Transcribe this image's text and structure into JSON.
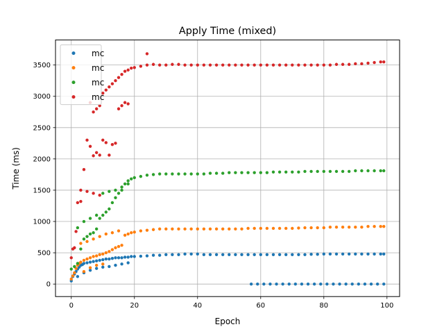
{
  "chart_data": {
    "type": "scatter",
    "title": "Apply Time (mixed)",
    "xlabel": "Epoch",
    "ylabel": "Time (ms)",
    "xlim": [
      -5,
      104
    ],
    "ylim": [
      -200,
      3900
    ],
    "xticks": [
      0,
      20,
      40,
      60,
      80,
      100
    ],
    "yticks": [
      0,
      500,
      1000,
      1500,
      2000,
      2500,
      3000,
      3500
    ],
    "grid": true,
    "legend": {
      "placement": "top-left"
    },
    "series": [
      {
        "name": "mc",
        "color": "#1f77b4",
        "points": [
          [
            0,
            50
          ],
          [
            0.5,
            120
          ],
          [
            1,
            160
          ],
          [
            1.5,
            200
          ],
          [
            2,
            240
          ],
          [
            2.5,
            270
          ],
          [
            3,
            300
          ],
          [
            3.5,
            310
          ],
          [
            4,
            330
          ],
          [
            5,
            340
          ],
          [
            6,
            350
          ],
          [
            7,
            360
          ],
          [
            8,
            370
          ],
          [
            9,
            380
          ],
          [
            10,
            390
          ],
          [
            11,
            400
          ],
          [
            12,
            400
          ],
          [
            13,
            410
          ],
          [
            14,
            420
          ],
          [
            15,
            420
          ],
          [
            16,
            420
          ],
          [
            17,
            430
          ],
          [
            18,
            430
          ],
          [
            19,
            440
          ],
          [
            20,
            440
          ],
          [
            22,
            445
          ],
          [
            24,
            450
          ],
          [
            26,
            460
          ],
          [
            28,
            460
          ],
          [
            30,
            470
          ],
          [
            32,
            470
          ],
          [
            34,
            470
          ],
          [
            36,
            480
          ],
          [
            38,
            480
          ],
          [
            40,
            480
          ],
          [
            42,
            470
          ],
          [
            44,
            470
          ],
          [
            46,
            470
          ],
          [
            48,
            470
          ],
          [
            50,
            470
          ],
          [
            52,
            470
          ],
          [
            54,
            470
          ],
          [
            56,
            470
          ],
          [
            58,
            470
          ],
          [
            60,
            470
          ],
          [
            62,
            470
          ],
          [
            64,
            470
          ],
          [
            66,
            470
          ],
          [
            68,
            470
          ],
          [
            70,
            470
          ],
          [
            72,
            470
          ],
          [
            74,
            470
          ],
          [
            76,
            475
          ],
          [
            78,
            475
          ],
          [
            80,
            480
          ],
          [
            82,
            480
          ],
          [
            84,
            480
          ],
          [
            86,
            480
          ],
          [
            88,
            480
          ],
          [
            90,
            480
          ],
          [
            92,
            480
          ],
          [
            94,
            480
          ],
          [
            96,
            480
          ],
          [
            98,
            480
          ],
          [
            99,
            480
          ],
          [
            2,
            120
          ],
          [
            4,
            180
          ],
          [
            6,
            220
          ],
          [
            8,
            250
          ],
          [
            10,
            270
          ],
          [
            12,
            280
          ],
          [
            14,
            300
          ],
          [
            16,
            320
          ],
          [
            18,
            340
          ],
          [
            57,
            0
          ],
          [
            59,
            0
          ],
          [
            61,
            0
          ],
          [
            63,
            0
          ],
          [
            65,
            0
          ],
          [
            67,
            0
          ],
          [
            69,
            0
          ],
          [
            71,
            0
          ],
          [
            73,
            0
          ],
          [
            75,
            0
          ],
          [
            77,
            0
          ],
          [
            79,
            0
          ],
          [
            81,
            0
          ],
          [
            83,
            0
          ],
          [
            85,
            0
          ],
          [
            87,
            0
          ],
          [
            89,
            0
          ],
          [
            91,
            0
          ],
          [
            93,
            0
          ],
          [
            95,
            0
          ],
          [
            97,
            0
          ],
          [
            99,
            0
          ]
        ]
      },
      {
        "name": "mc",
        "color": "#ff7f0e",
        "points": [
          [
            0,
            80
          ],
          [
            0.5,
            130
          ],
          [
            1,
            180
          ],
          [
            1.5,
            250
          ],
          [
            2,
            300
          ],
          [
            2.5,
            330
          ],
          [
            3,
            350
          ],
          [
            4,
            380
          ],
          [
            5,
            400
          ],
          [
            6,
            420
          ],
          [
            7,
            440
          ],
          [
            8,
            450
          ],
          [
            9,
            470
          ],
          [
            10,
            480
          ],
          [
            11,
            500
          ],
          [
            12,
            520
          ],
          [
            13,
            550
          ],
          [
            14,
            580
          ],
          [
            15,
            600
          ],
          [
            16,
            620
          ],
          [
            17,
            780
          ],
          [
            18,
            800
          ],
          [
            19,
            820
          ],
          [
            20,
            830
          ],
          [
            22,
            850
          ],
          [
            24,
            860
          ],
          [
            26,
            870
          ],
          [
            28,
            880
          ],
          [
            30,
            880
          ],
          [
            32,
            880
          ],
          [
            34,
            880
          ],
          [
            36,
            880
          ],
          [
            38,
            880
          ],
          [
            40,
            880
          ],
          [
            42,
            880
          ],
          [
            44,
            880
          ],
          [
            46,
            880
          ],
          [
            48,
            880
          ],
          [
            50,
            880
          ],
          [
            52,
            880
          ],
          [
            54,
            880
          ],
          [
            56,
            890
          ],
          [
            58,
            890
          ],
          [
            60,
            890
          ],
          [
            62,
            890
          ],
          [
            64,
            890
          ],
          [
            66,
            890
          ],
          [
            68,
            890
          ],
          [
            70,
            890
          ],
          [
            72,
            895
          ],
          [
            74,
            900
          ],
          [
            76,
            900
          ],
          [
            78,
            900
          ],
          [
            80,
            900
          ],
          [
            82,
            910
          ],
          [
            84,
            910
          ],
          [
            86,
            910
          ],
          [
            88,
            910
          ],
          [
            90,
            910
          ],
          [
            92,
            910
          ],
          [
            94,
            920
          ],
          [
            96,
            920
          ],
          [
            98,
            920
          ],
          [
            99,
            920
          ],
          [
            3,
            650
          ],
          [
            5,
            680
          ],
          [
            7,
            720
          ],
          [
            9,
            760
          ],
          [
            11,
            800
          ],
          [
            13,
            820
          ],
          [
            15,
            850
          ],
          [
            4,
            200
          ],
          [
            6,
            260
          ],
          [
            8,
            300
          ],
          [
            10,
            320
          ]
        ]
      },
      {
        "name": "mc",
        "color": "#2ca02c",
        "points": [
          [
            0,
            240
          ],
          [
            1,
            280
          ],
          [
            2,
            330
          ],
          [
            3,
            560
          ],
          [
            4,
            720
          ],
          [
            5,
            760
          ],
          [
            6,
            800
          ],
          [
            7,
            820
          ],
          [
            8,
            880
          ],
          [
            9,
            1050
          ],
          [
            10,
            1100
          ],
          [
            11,
            1150
          ],
          [
            12,
            1200
          ],
          [
            13,
            1300
          ],
          [
            14,
            1380
          ],
          [
            15,
            1450
          ],
          [
            16,
            1500
          ],
          [
            17,
            1600
          ],
          [
            18,
            1650
          ],
          [
            19,
            1680
          ],
          [
            20,
            1700
          ],
          [
            22,
            1720
          ],
          [
            24,
            1740
          ],
          [
            26,
            1750
          ],
          [
            28,
            1760
          ],
          [
            30,
            1760
          ],
          [
            32,
            1760
          ],
          [
            34,
            1760
          ],
          [
            36,
            1760
          ],
          [
            38,
            1760
          ],
          [
            40,
            1760
          ],
          [
            42,
            1760
          ],
          [
            44,
            1770
          ],
          [
            46,
            1770
          ],
          [
            48,
            1770
          ],
          [
            50,
            1780
          ],
          [
            52,
            1780
          ],
          [
            54,
            1780
          ],
          [
            56,
            1780
          ],
          [
            58,
            1780
          ],
          [
            60,
            1780
          ],
          [
            62,
            1780
          ],
          [
            64,
            1790
          ],
          [
            66,
            1790
          ],
          [
            68,
            1790
          ],
          [
            70,
            1790
          ],
          [
            72,
            1790
          ],
          [
            74,
            1800
          ],
          [
            76,
            1800
          ],
          [
            78,
            1800
          ],
          [
            80,
            1800
          ],
          [
            82,
            1800
          ],
          [
            84,
            1800
          ],
          [
            86,
            1800
          ],
          [
            88,
            1800
          ],
          [
            90,
            1810
          ],
          [
            92,
            1810
          ],
          [
            94,
            1810
          ],
          [
            96,
            1810
          ],
          [
            98,
            1810
          ],
          [
            99,
            1810
          ],
          [
            2,
            900
          ],
          [
            4,
            1000
          ],
          [
            6,
            1050
          ],
          [
            8,
            1100
          ],
          [
            10,
            1450
          ],
          [
            12,
            1480
          ],
          [
            14,
            1500
          ],
          [
            16,
            1550
          ],
          [
            18,
            1600
          ]
        ]
      },
      {
        "name": "mc",
        "color": "#d62728",
        "points": [
          [
            0,
            420
          ],
          [
            0.5,
            560
          ],
          [
            1,
            580
          ],
          [
            1.5,
            840
          ],
          [
            2,
            1300
          ],
          [
            3,
            1320
          ],
          [
            4,
            1830
          ],
          [
            5,
            2300
          ],
          [
            6,
            2200
          ],
          [
            7,
            2050
          ],
          [
            8,
            2100
          ],
          [
            9,
            2060
          ],
          [
            10,
            2300
          ],
          [
            11,
            2260
          ],
          [
            12,
            2060
          ],
          [
            13,
            2230
          ],
          [
            14,
            2250
          ],
          [
            6,
            2900
          ],
          [
            7,
            2750
          ],
          [
            8,
            2800
          ],
          [
            9,
            2850
          ],
          [
            10,
            3050
          ],
          [
            11,
            3100
          ],
          [
            12,
            3150
          ],
          [
            13,
            3200
          ],
          [
            14,
            3250
          ],
          [
            15,
            3300
          ],
          [
            16,
            3350
          ],
          [
            17,
            3400
          ],
          [
            18,
            3420
          ],
          [
            19,
            3450
          ],
          [
            20,
            3460
          ],
          [
            22,
            3480
          ],
          [
            24,
            3500
          ],
          [
            24,
            3680
          ],
          [
            26,
            3510
          ],
          [
            28,
            3500
          ],
          [
            30,
            3500
          ],
          [
            32,
            3510
          ],
          [
            34,
            3510
          ],
          [
            36,
            3500
          ],
          [
            38,
            3500
          ],
          [
            40,
            3500
          ],
          [
            42,
            3500
          ],
          [
            44,
            3500
          ],
          [
            46,
            3500
          ],
          [
            48,
            3500
          ],
          [
            50,
            3500
          ],
          [
            52,
            3500
          ],
          [
            54,
            3500
          ],
          [
            56,
            3500
          ],
          [
            58,
            3500
          ],
          [
            60,
            3500
          ],
          [
            62,
            3500
          ],
          [
            64,
            3500
          ],
          [
            66,
            3500
          ],
          [
            68,
            3500
          ],
          [
            70,
            3500
          ],
          [
            72,
            3500
          ],
          [
            74,
            3500
          ],
          [
            76,
            3500
          ],
          [
            78,
            3500
          ],
          [
            80,
            3500
          ],
          [
            82,
            3500
          ],
          [
            84,
            3510
          ],
          [
            86,
            3510
          ],
          [
            88,
            3510
          ],
          [
            90,
            3520
          ],
          [
            92,
            3520
          ],
          [
            94,
            3530
          ],
          [
            96,
            3540
          ],
          [
            98,
            3550
          ],
          [
            99,
            3550
          ],
          [
            3,
            1500
          ],
          [
            5,
            1480
          ],
          [
            7,
            1450
          ],
          [
            9,
            1420
          ],
          [
            15,
            2800
          ],
          [
            16,
            2850
          ],
          [
            17,
            2900
          ],
          [
            18,
            2880
          ]
        ]
      }
    ]
  }
}
